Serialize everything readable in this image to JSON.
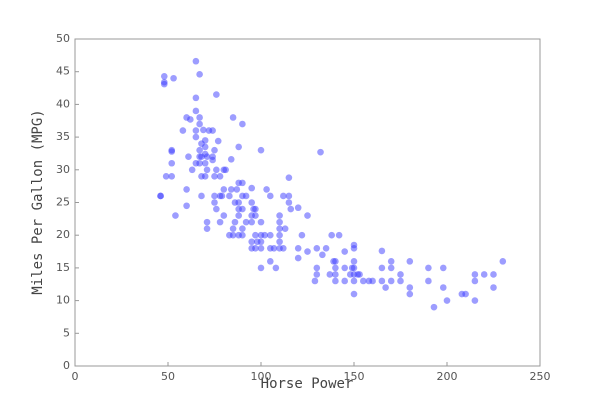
{
  "chart_data": {
    "type": "scatter",
    "x_label": "Horse Power",
    "y_label": "Miles Per Gallon (MPG)",
    "color": "#3b3bff",
    "x": [
      46,
      46,
      48,
      48,
      48,
      49,
      52,
      52,
      52,
      52,
      53,
      54,
      58,
      60,
      60,
      60,
      61,
      62,
      63,
      65,
      65,
      65,
      65,
      65,
      65,
      67,
      67,
      67,
      67,
      67,
      67,
      68,
      68,
      68,
      68,
      69,
      70,
      70,
      70,
      70,
      70,
      71,
      71,
      71,
      71,
      72,
      74,
      74,
      74,
      75,
      75,
      75,
      75,
      76,
      76,
      76,
      77,
      78,
      78,
      78,
      79,
      80,
      80,
      80,
      81,
      83,
      83,
      84,
      84,
      85,
      85,
      85,
      86,
      86,
      87,
      88,
      88,
      88,
      88,
      88,
      88,
      90,
      90,
      90,
      90,
      90,
      90,
      92,
      92,
      95,
      95,
      95,
      95,
      95,
      95,
      96,
      97,
      97,
      97,
      97,
      98,
      100,
      100,
      100,
      100,
      100,
      100,
      102,
      103,
      105,
      105,
      105,
      105,
      107,
      108,
      110,
      110,
      110,
      110,
      110,
      110,
      112,
      112,
      113,
      115,
      115,
      115,
      116,
      120,
      120,
      120,
      122,
      125,
      125,
      129,
      130,
      130,
      130,
      132,
      133,
      135,
      137,
      138,
      139,
      140,
      140,
      140,
      140,
      142,
      145,
      145,
      145,
      148,
      149,
      150,
      150,
      150,
      150,
      150,
      150,
      150,
      152,
      153,
      155,
      158,
      160,
      165,
      165,
      165,
      167,
      170,
      170,
      170,
      175,
      175,
      180,
      180,
      180,
      190,
      190,
      193,
      198,
      198,
      200,
      208,
      210,
      215,
      215,
      215,
      220,
      225,
      225,
      230
    ],
    "values": [
      26,
      26,
      43.4,
      43.1,
      44.3,
      29,
      29,
      31,
      32.8,
      33,
      44,
      23,
      36,
      27,
      24.5,
      38,
      32,
      37.7,
      30,
      46.6,
      39,
      31,
      36,
      41,
      35,
      33,
      44.6,
      37,
      38,
      31,
      32,
      26,
      29,
      34,
      32,
      36.1,
      29,
      31,
      32.4,
      33.5,
      34.5,
      21,
      22,
      32,
      30,
      36,
      31.5,
      36,
      32,
      25,
      26,
      29,
      33,
      41.5,
      24,
      30,
      34.4,
      26,
      29,
      22,
      26,
      23,
      27,
      30,
      30,
      20,
      26,
      27,
      31.6,
      20,
      21,
      38,
      22,
      25,
      27,
      20,
      24,
      25,
      23,
      33.5,
      28,
      20,
      21,
      24,
      26,
      28,
      37,
      22,
      26,
      18,
      19,
      22,
      23,
      25,
      27.2,
      24,
      18,
      20,
      23,
      24,
      19,
      18,
      19,
      20,
      22,
      15,
      33,
      20,
      27,
      16,
      18,
      20,
      26,
      18,
      15,
      18,
      19,
      20,
      21,
      22,
      23,
      26,
      18,
      21,
      26,
      25,
      28.8,
      24,
      16.5,
      18,
      24.2,
      20,
      23,
      17.5,
      13,
      14,
      15,
      18,
      32.7,
      17,
      18,
      14,
      20,
      16,
      13,
      14,
      15,
      16,
      20,
      13,
      15,
      17.5,
      14,
      15,
      11,
      13,
      14,
      15,
      16,
      18,
      18.5,
      14,
      14,
      13,
      13,
      13,
      13,
      15,
      17.6,
      12,
      13,
      15,
      16,
      13,
      14,
      12,
      11,
      16,
      13,
      15,
      9,
      12,
      15,
      10,
      11,
      11,
      14,
      13,
      10,
      14,
      12,
      14,
      16
    ],
    "xlim": [
      0,
      250
    ],
    "ylim": [
      0,
      50
    ],
    "xticks": [
      0,
      50,
      100,
      150,
      200,
      250
    ],
    "yticks": [
      0,
      5,
      10,
      15,
      20,
      25,
      30,
      35,
      40,
      45,
      50
    ]
  }
}
